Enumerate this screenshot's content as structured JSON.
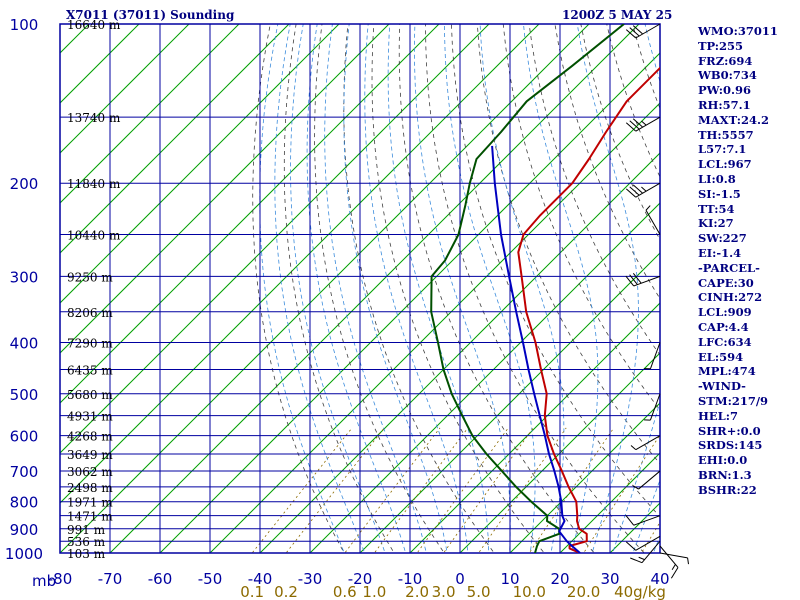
{
  "header": {
    "title": "X7011 (37011) Sounding",
    "time": "1200Z  5 MAY 25"
  },
  "indices": [
    "WMO:37011",
    "TP:255",
    "FRZ:694",
    "WB0:734",
    "PW:0.96",
    "RH:57.1",
    "MAXT:24.2",
    "TH:5557",
    "L57:7.1",
    "LCL:967",
    "LI:0.8",
    "SI:-1.5",
    "TT:54",
    "KI:27",
    "SW:227",
    "EI:-1.4",
    "-PARCEL-",
    "CAPE:30",
    "CINH:272",
    "LCL:909",
    "CAP:4.4",
    "LFC:634",
    "EL:594",
    "MPL:474",
    "-WIND-",
    "STM:217/9",
    "HEL:7",
    "SHR+:0.0",
    "SRDS:145",
    "EHI:0.0",
    "BRN:1.3",
    "BSHR:22"
  ],
  "colors": {
    "frame": "#0000a0",
    "temperature": "#c00000",
    "dewpoint": "#005000",
    "parcel": "#0000c0",
    "isotherm": "#00a000",
    "dry_adiabat": "#404040",
    "moist_adiabat": "#3c8cdc",
    "mixing_ratio_label": "#8c6a00"
  },
  "chart_data": {
    "type": "line",
    "title": "X7011 (37011) Sounding",
    "xlabel": "",
    "ylabel": "mb",
    "xlim": [
      -80,
      0
    ],
    "ylim": [
      1000,
      100
    ],
    "y_scale": "log",
    "x_ticks": [
      -80,
      -70,
      -60,
      -50,
      -40,
      -30,
      -20,
      -10,
      0,
      10,
      20,
      30,
      40
    ],
    "pressure_levels": [
      100,
      200,
      300,
      400,
      500,
      600,
      700,
      800,
      900,
      1000
    ],
    "height_labels": [
      {
        "p": 100,
        "label": "16640 m"
      },
      {
        "p": 150,
        "label": "13740 m"
      },
      {
        "p": 200,
        "label": "11840 m"
      },
      {
        "p": 250,
        "label": "10440 m"
      },
      {
        "p": 300,
        "label": "9250 m"
      },
      {
        "p": 350,
        "label": "8206 m"
      },
      {
        "p": 400,
        "label": "7290 m"
      },
      {
        "p": 450,
        "label": "6435 m"
      },
      {
        "p": 500,
        "label": "5680 m"
      },
      {
        "p": 550,
        "label": "4931 m"
      },
      {
        "p": 600,
        "label": "4268 m"
      },
      {
        "p": 650,
        "label": "3649 m"
      },
      {
        "p": 700,
        "label": "3062 m"
      },
      {
        "p": 750,
        "label": "2498 m"
      },
      {
        "p": 800,
        "label": "1971 m"
      },
      {
        "p": 850,
        "label": "1471 m"
      },
      {
        "p": 900,
        "label": "991 m"
      },
      {
        "p": 950,
        "label": "536 m"
      },
      {
        "p": 1000,
        "label": "103 m"
      }
    ],
    "mixing_ratio_labels": [
      "0.1",
      "0.2",
      "0.6",
      "1.0",
      "2.0",
      "3.0",
      "5.0",
      "10.0",
      "20.0",
      "40g/kg"
    ],
    "mixing_ratio_values": [
      0.1,
      0.2,
      0.6,
      1.0,
      2.0,
      3.0,
      5.0,
      10.0,
      20.0,
      40.0
    ],
    "series": [
      {
        "name": "",
        "role": "temperature",
        "points": [
          {
            "p": 1000,
            "t": 24
          },
          {
            "p": 980,
            "t": 21
          },
          {
            "p": 970,
            "t": 20.5
          },
          {
            "p": 950,
            "t": 23
          },
          {
            "p": 920,
            "t": 21.5
          },
          {
            "p": 900,
            "t": 19
          },
          {
            "p": 870,
            "t": 17
          },
          {
            "p": 850,
            "t": 16
          },
          {
            "p": 800,
            "t": 13
          },
          {
            "p": 750,
            "t": 8.5
          },
          {
            "p": 700,
            "t": 4
          },
          {
            "p": 650,
            "t": -1
          },
          {
            "p": 600,
            "t": -6
          },
          {
            "p": 550,
            "t": -10.5
          },
          {
            "p": 500,
            "t": -14.5
          },
          {
            "p": 450,
            "t": -20.5
          },
          {
            "p": 400,
            "t": -27
          },
          {
            "p": 350,
            "t": -35
          },
          {
            "p": 300,
            "t": -43
          },
          {
            "p": 270,
            "t": -48.5
          },
          {
            "p": 250,
            "t": -51
          },
          {
            "p": 230,
            "t": -51.5
          },
          {
            "p": 200,
            "t": -51.5
          },
          {
            "p": 180,
            "t": -53
          },
          {
            "p": 160,
            "t": -55
          },
          {
            "p": 140,
            "t": -57
          },
          {
            "p": 120,
            "t": -57
          },
          {
            "p": 110,
            "t": -55
          },
          {
            "p": 100,
            "t": -57
          }
        ]
      },
      {
        "name": "",
        "role": "dewpoint",
        "points": [
          {
            "p": 1000,
            "t": 15
          },
          {
            "p": 970,
            "t": 14
          },
          {
            "p": 950,
            "t": 13.5
          },
          {
            "p": 920,
            "t": 16
          },
          {
            "p": 900,
            "t": 15
          },
          {
            "p": 870,
            "t": 11
          },
          {
            "p": 850,
            "t": 10
          },
          {
            "p": 800,
            "t": 4
          },
          {
            "p": 750,
            "t": -2
          },
          {
            "p": 700,
            "t": -8
          },
          {
            "p": 650,
            "t": -14.5
          },
          {
            "p": 600,
            "t": -21
          },
          {
            "p": 550,
            "t": -27
          },
          {
            "p": 500,
            "t": -33.5
          },
          {
            "p": 450,
            "t": -40
          },
          {
            "p": 400,
            "t": -46.5
          },
          {
            "p": 350,
            "t": -54
          },
          {
            "p": 300,
            "t": -61
          },
          {
            "p": 280,
            "t": -61.5
          },
          {
            "p": 250,
            "t": -64
          },
          {
            "p": 220,
            "t": -68.5
          },
          {
            "p": 200,
            "t": -72
          },
          {
            "p": 180,
            "t": -75.5
          },
          {
            "p": 160,
            "t": -76
          },
          {
            "p": 140,
            "t": -77
          },
          {
            "p": 120,
            "t": -75
          },
          {
            "p": 100,
            "t": -73
          }
        ]
      },
      {
        "name": "",
        "role": "parcel",
        "points": [
          {
            "p": 1000,
            "t": 24
          },
          {
            "p": 970,
            "t": 21
          },
          {
            "p": 950,
            "t": 19
          },
          {
            "p": 910,
            "t": 15.5
          },
          {
            "p": 870,
            "t": 14.5
          },
          {
            "p": 850,
            "t": 13
          },
          {
            "p": 800,
            "t": 10
          },
          {
            "p": 750,
            "t": 6.5
          },
          {
            "p": 700,
            "t": 2.5
          },
          {
            "p": 650,
            "t": -2
          },
          {
            "p": 600,
            "t": -6.5
          },
          {
            "p": 550,
            "t": -11.5
          },
          {
            "p": 500,
            "t": -17
          },
          {
            "p": 450,
            "t": -23
          },
          {
            "p": 400,
            "t": -29.5
          },
          {
            "p": 350,
            "t": -37
          },
          {
            "p": 300,
            "t": -45.5
          },
          {
            "p": 250,
            "t": -55.5
          },
          {
            "p": 200,
            "t": -67
          },
          {
            "p": 170,
            "t": -75
          }
        ]
      }
    ],
    "wind_barbs": [
      {
        "p": 1000,
        "dir": 100,
        "kt": 5
      },
      {
        "p": 970,
        "dir": 140,
        "kt": 15
      },
      {
        "p": 950,
        "dir": 220,
        "kt": 15
      },
      {
        "p": 930,
        "dir": 240,
        "kt": 10
      },
      {
        "p": 850,
        "dir": 250,
        "kt": 10
      },
      {
        "p": 700,
        "dir": 230,
        "kt": 5
      },
      {
        "p": 600,
        "dir": 240,
        "kt": 5
      },
      {
        "p": 500,
        "dir": 200,
        "kt": 5
      },
      {
        "p": 400,
        "dir": 200,
        "kt": 5
      },
      {
        "p": 300,
        "dir": 250,
        "kt": 30
      },
      {
        "p": 250,
        "dir": 330,
        "kt": 5
      },
      {
        "p": 200,
        "dir": 240,
        "kt": 35
      },
      {
        "p": 150,
        "dir": 240,
        "kt": 35
      },
      {
        "p": 100,
        "dir": 240,
        "kt": 30
      }
    ],
    "grid": true
  }
}
